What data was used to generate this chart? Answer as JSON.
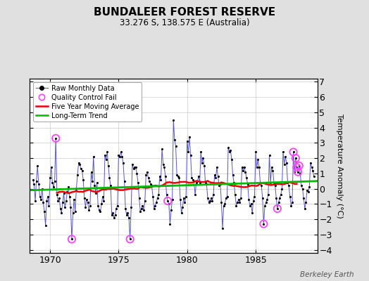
{
  "title": "BUNDALEER FOREST RESERVE",
  "subtitle": "33.276 S, 138.575 E (Australia)",
  "ylabel": "Temperature Anomaly (°C)",
  "credit": "Berkeley Earth",
  "xlim": [
    1968.5,
    1989.5
  ],
  "ylim": [
    -4.2,
    7.2
  ],
  "yticks": [
    -4,
    -3,
    -2,
    -1,
    0,
    1,
    2,
    3,
    4,
    5,
    6,
    7
  ],
  "xticks": [
    1970,
    1975,
    1980,
    1985
  ],
  "bg_color": "#e0e0e0",
  "plot_bg_color": "#ffffff",
  "raw_color": "#5555cc",
  "dot_color": "#000000",
  "qc_color": "#ff44ff",
  "ma_color": "#ee0000",
  "trend_color": "#00bb00",
  "raw_data": [
    [
      1968.75,
      0.6
    ],
    [
      1968.833,
      0.3
    ],
    [
      1968.917,
      -0.8
    ],
    [
      1969.0,
      0.5
    ],
    [
      1969.083,
      1.5
    ],
    [
      1969.167,
      0.3
    ],
    [
      1969.25,
      -0.5
    ],
    [
      1969.333,
      -0.7
    ],
    [
      1969.417,
      0.0
    ],
    [
      1969.5,
      -0.9
    ],
    [
      1969.583,
      -1.5
    ],
    [
      1969.667,
      -2.4
    ],
    [
      1969.75,
      -0.8
    ],
    [
      1969.833,
      -0.5
    ],
    [
      1969.917,
      -1.1
    ],
    [
      1970.0,
      0.7
    ],
    [
      1970.083,
      1.4
    ],
    [
      1970.167,
      0.4
    ],
    [
      1970.25,
      0.1
    ],
    [
      1970.333,
      0.5
    ],
    [
      1970.417,
      3.3
    ],
    [
      1970.5,
      -0.4
    ],
    [
      1970.583,
      -0.8
    ],
    [
      1970.667,
      -0.6
    ],
    [
      1970.75,
      -1.3
    ],
    [
      1970.833,
      -1.6
    ],
    [
      1970.917,
      -0.9
    ],
    [
      1971.0,
      -0.3
    ],
    [
      1971.083,
      -1.2
    ],
    [
      1971.167,
      -0.8
    ],
    [
      1971.25,
      -0.2
    ],
    [
      1971.333,
      0.1
    ],
    [
      1971.417,
      -0.5
    ],
    [
      1971.5,
      -1.2
    ],
    [
      1971.583,
      -3.3
    ],
    [
      1971.667,
      -1.6
    ],
    [
      1971.75,
      -0.7
    ],
    [
      1971.833,
      -1.5
    ],
    [
      1971.917,
      0.0
    ],
    [
      1972.0,
      0.9
    ],
    [
      1972.083,
      1.7
    ],
    [
      1972.167,
      1.6
    ],
    [
      1972.25,
      1.3
    ],
    [
      1972.333,
      1.2
    ],
    [
      1972.417,
      0.6
    ],
    [
      1972.5,
      -0.6
    ],
    [
      1972.583,
      -1.2
    ],
    [
      1972.667,
      -0.7
    ],
    [
      1972.75,
      -0.9
    ],
    [
      1972.833,
      -1.4
    ],
    [
      1972.917,
      -1.1
    ],
    [
      1973.0,
      1.1
    ],
    [
      1973.083,
      0.5
    ],
    [
      1973.167,
      2.1
    ],
    [
      1973.25,
      0.2
    ],
    [
      1973.333,
      -0.3
    ],
    [
      1973.417,
      0.4
    ],
    [
      1973.5,
      -1.1
    ],
    [
      1973.583,
      -1.4
    ],
    [
      1973.667,
      -1.5
    ],
    [
      1973.75,
      -1.0
    ],
    [
      1973.833,
      -0.5
    ],
    [
      1973.917,
      -0.8
    ],
    [
      1974.0,
      2.2
    ],
    [
      1974.083,
      1.9
    ],
    [
      1974.167,
      2.4
    ],
    [
      1974.25,
      1.5
    ],
    [
      1974.333,
      0.7
    ],
    [
      1974.417,
      0.2
    ],
    [
      1974.5,
      -1.7
    ],
    [
      1974.583,
      -1.6
    ],
    [
      1974.667,
      -1.9
    ],
    [
      1974.75,
      -1.7
    ],
    [
      1974.833,
      -1.3
    ],
    [
      1974.917,
      -1.1
    ],
    [
      1975.0,
      2.2
    ],
    [
      1975.083,
      2.1
    ],
    [
      1975.167,
      2.4
    ],
    [
      1975.25,
      2.1
    ],
    [
      1975.333,
      1.7
    ],
    [
      1975.417,
      0.5
    ],
    [
      1975.5,
      -1.3
    ],
    [
      1975.583,
      -1.7
    ],
    [
      1975.667,
      -1.6
    ],
    [
      1975.75,
      -1.9
    ],
    [
      1975.833,
      -3.3
    ],
    [
      1975.917,
      -1.2
    ],
    [
      1976.0,
      1.6
    ],
    [
      1976.083,
      1.3
    ],
    [
      1976.167,
      1.4
    ],
    [
      1976.25,
      1.4
    ],
    [
      1976.333,
      1.0
    ],
    [
      1976.417,
      0.4
    ],
    [
      1976.5,
      -0.6
    ],
    [
      1976.583,
      -1.5
    ],
    [
      1976.667,
      -1.3
    ],
    [
      1976.75,
      -1.1
    ],
    [
      1976.833,
      -1.4
    ],
    [
      1976.917,
      -0.8
    ],
    [
      1977.0,
      0.9
    ],
    [
      1977.083,
      1.1
    ],
    [
      1977.167,
      0.7
    ],
    [
      1977.25,
      0.5
    ],
    [
      1977.333,
      0.3
    ],
    [
      1977.417,
      0.2
    ],
    [
      1977.5,
      -0.5
    ],
    [
      1977.583,
      -1.3
    ],
    [
      1977.667,
      -1.1
    ],
    [
      1977.75,
      -0.9
    ],
    [
      1977.833,
      -0.6
    ],
    [
      1977.917,
      -0.4
    ],
    [
      1978.0,
      0.8
    ],
    [
      1978.083,
      0.6
    ],
    [
      1978.167,
      2.6
    ],
    [
      1978.25,
      1.6
    ],
    [
      1978.333,
      1.4
    ],
    [
      1978.417,
      0.8
    ],
    [
      1978.5,
      -0.4
    ],
    [
      1978.583,
      -0.8
    ],
    [
      1978.667,
      -1.0
    ],
    [
      1978.75,
      -2.3
    ],
    [
      1978.833,
      -1.4
    ],
    [
      1978.917,
      -0.7
    ],
    [
      1979.0,
      4.5
    ],
    [
      1979.083,
      3.2
    ],
    [
      1979.167,
      2.8
    ],
    [
      1979.25,
      0.9
    ],
    [
      1979.333,
      0.8
    ],
    [
      1979.417,
      0.7
    ],
    [
      1979.5,
      -0.7
    ],
    [
      1979.583,
      -1.6
    ],
    [
      1979.667,
      -1.2
    ],
    [
      1979.75,
      -0.6
    ],
    [
      1979.833,
      -0.9
    ],
    [
      1979.917,
      -0.5
    ],
    [
      1980.0,
      3.1
    ],
    [
      1980.083,
      2.4
    ],
    [
      1980.167,
      3.4
    ],
    [
      1980.25,
      2.2
    ],
    [
      1980.333,
      0.7
    ],
    [
      1980.417,
      0.6
    ],
    [
      1980.5,
      0.5
    ],
    [
      1980.583,
      -0.4
    ],
    [
      1980.667,
      0.4
    ],
    [
      1980.75,
      0.5
    ],
    [
      1980.833,
      0.8
    ],
    [
      1980.917,
      0.4
    ],
    [
      1981.0,
      2.4
    ],
    [
      1981.083,
      1.7
    ],
    [
      1981.167,
      2.0
    ],
    [
      1981.25,
      1.5
    ],
    [
      1981.333,
      0.4
    ],
    [
      1981.417,
      0.3
    ],
    [
      1981.5,
      -0.6
    ],
    [
      1981.583,
      -0.9
    ],
    [
      1981.667,
      -0.8
    ],
    [
      1981.75,
      -0.6
    ],
    [
      1981.833,
      -0.8
    ],
    [
      1981.917,
      -0.4
    ],
    [
      1982.0,
      0.9
    ],
    [
      1982.083,
      0.7
    ],
    [
      1982.167,
      1.4
    ],
    [
      1982.25,
      0.8
    ],
    [
      1982.333,
      0.2
    ],
    [
      1982.417,
      0.3
    ],
    [
      1982.5,
      -0.9
    ],
    [
      1982.583,
      -2.6
    ],
    [
      1982.667,
      -1.1
    ],
    [
      1982.75,
      -1.0
    ],
    [
      1982.833,
      -0.6
    ],
    [
      1982.917,
      -0.5
    ],
    [
      1983.0,
      2.7
    ],
    [
      1983.083,
      2.4
    ],
    [
      1983.167,
      2.5
    ],
    [
      1983.25,
      1.9
    ],
    [
      1983.333,
      0.9
    ],
    [
      1983.417,
      0.4
    ],
    [
      1983.5,
      -0.4
    ],
    [
      1983.583,
      -1.1
    ],
    [
      1983.667,
      -0.9
    ],
    [
      1983.75,
      -0.7
    ],
    [
      1983.833,
      -0.9
    ],
    [
      1983.917,
      -0.6
    ],
    [
      1984.0,
      1.4
    ],
    [
      1984.083,
      1.2
    ],
    [
      1984.167,
      1.4
    ],
    [
      1984.25,
      1.1
    ],
    [
      1984.333,
      0.7
    ],
    [
      1984.417,
      0.3
    ],
    [
      1984.5,
      -0.7
    ],
    [
      1984.583,
      -1.1
    ],
    [
      1984.667,
      -1.0
    ],
    [
      1984.75,
      -1.6
    ],
    [
      1984.833,
      -0.8
    ],
    [
      1984.917,
      -0.5
    ],
    [
      1985.0,
      2.4
    ],
    [
      1985.083,
      1.4
    ],
    [
      1985.167,
      1.9
    ],
    [
      1985.25,
      1.4
    ],
    [
      1985.333,
      0.4
    ],
    [
      1985.417,
      0.2
    ],
    [
      1985.5,
      -0.6
    ],
    [
      1985.583,
      -2.3
    ],
    [
      1985.667,
      -1.1
    ],
    [
      1985.75,
      -0.9
    ],
    [
      1985.833,
      -0.7
    ],
    [
      1985.917,
      -0.4
    ],
    [
      1986.0,
      2.2
    ],
    [
      1986.083,
      0.4
    ],
    [
      1986.167,
      1.4
    ],
    [
      1986.25,
      1.2
    ],
    [
      1986.333,
      0.4
    ],
    [
      1986.417,
      0.2
    ],
    [
      1986.5,
      -0.6
    ],
    [
      1986.583,
      -1.3
    ],
    [
      1986.667,
      -0.9
    ],
    [
      1986.75,
      -0.6
    ],
    [
      1986.833,
      -0.4
    ],
    [
      1986.917,
      0.0
    ],
    [
      1987.0,
      2.4
    ],
    [
      1987.083,
      1.6
    ],
    [
      1987.167,
      2.1
    ],
    [
      1987.25,
      1.7
    ],
    [
      1987.333,
      0.4
    ],
    [
      1987.417,
      0.2
    ],
    [
      1987.5,
      -0.5
    ],
    [
      1987.583,
      -1.1
    ],
    [
      1987.667,
      -0.9
    ],
    [
      1987.75,
      2.4
    ],
    [
      1987.833,
      1.1
    ],
    [
      1987.917,
      2.0
    ],
    [
      1988.0,
      1.4
    ],
    [
      1988.083,
      1.1
    ],
    [
      1988.167,
      1.5
    ],
    [
      1988.25,
      1.0
    ],
    [
      1988.333,
      0.2
    ],
    [
      1988.417,
      0.0
    ],
    [
      1988.5,
      -0.6
    ],
    [
      1988.583,
      -1.3
    ],
    [
      1988.667,
      -0.9
    ],
    [
      1988.75,
      -0.1
    ],
    [
      1988.833,
      -0.2
    ],
    [
      1988.917,
      0.1
    ],
    [
      1989.0,
      1.7
    ],
    [
      1989.083,
      1.4
    ],
    [
      1989.167,
      1.2
    ],
    [
      1989.25,
      0.8
    ]
  ],
  "qc_fail_indices_times": [
    1970.417,
    1971.583,
    1975.833,
    1978.583,
    1985.583,
    1987.75,
    1987.917,
    1988.0,
    1988.083,
    1988.167,
    1986.583
  ],
  "trend_x": [
    1968.5,
    1989.5
  ],
  "trend_y": [
    -0.1,
    0.5
  ]
}
